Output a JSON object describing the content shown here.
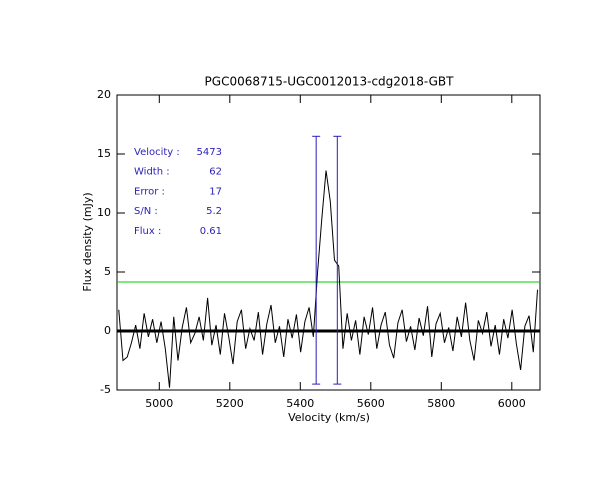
{
  "chart_data": {
    "type": "line",
    "title": "PGC0068715-UGC0012013-cdg2018-GBT",
    "x_label": "Velocity (km/s)",
    "y_label": "Flux density (mJy)",
    "xlim": [
      4880,
      6080
    ],
    "ylim": [
      -5,
      20
    ],
    "xticks": [
      5000,
      5200,
      5400,
      5600,
      5800,
      6000
    ],
    "yticks": [
      -5,
      0,
      5,
      10,
      15,
      20
    ],
    "x": [
      4885,
      4897,
      4909,
      4921,
      4933,
      4945,
      4957,
      4969,
      4981,
      4993,
      5005,
      5017,
      5029,
      5041,
      5053,
      5065,
      5077,
      5089,
      5101,
      5113,
      5125,
      5137,
      5149,
      5161,
      5173,
      5185,
      5197,
      5209,
      5221,
      5233,
      5245,
      5257,
      5269,
      5281,
      5293,
      5305,
      5317,
      5329,
      5341,
      5353,
      5365,
      5377,
      5389,
      5401,
      5413,
      5425,
      5437,
      5449,
      5461,
      5473,
      5485,
      5497,
      5509,
      5521,
      5533,
      5545,
      5557,
      5569,
      5581,
      5593,
      5605,
      5617,
      5629,
      5641,
      5653,
      5665,
      5677,
      5689,
      5701,
      5713,
      5725,
      5737,
      5749,
      5761,
      5773,
      5785,
      5797,
      5809,
      5821,
      5833,
      5845,
      5857,
      5869,
      5881,
      5893,
      5905,
      5917,
      5929,
      5941,
      5953,
      5965,
      5977,
      5989,
      6001,
      6013,
      6025,
      6037,
      6049,
      6061,
      6073
    ],
    "series": [
      {
        "color": "#000000",
        "values": [
          1.8,
          -2.5,
          -2.2,
          -1.0,
          0.5,
          -1.5,
          1.5,
          -0.5,
          1.0,
          -1.0,
          0.8,
          -1.5,
          -4.8,
          1.2,
          -2.5,
          0.3,
          2.0,
          -1.0,
          -0.2,
          1.2,
          -0.8,
          2.8,
          -1.2,
          0.5,
          -2.0,
          1.5,
          -0.5,
          -2.8,
          0.8,
          1.8,
          -1.5,
          0.2,
          -0.8,
          1.6,
          -2.0,
          0.6,
          2.2,
          -1.0,
          0.4,
          -2.2,
          1.0,
          -0.6,
          1.4,
          -1.8,
          0.8,
          2.0,
          -0.5,
          5.0,
          9.5,
          13.6,
          11.0,
          6.0,
          5.5,
          -1.5,
          1.5,
          -0.8,
          0.9,
          -2.0,
          1.2,
          -0.3,
          2.0,
          -1.5,
          0.5,
          1.6,
          -1.2,
          -2.3,
          0.7,
          1.8,
          -0.9,
          0.4,
          -1.6,
          1.1,
          -0.4,
          2.1,
          -2.2,
          0.6,
          1.5,
          -1.0,
          0.3,
          -1.7,
          1.2,
          -0.5,
          2.4,
          -0.8,
          -2.5,
          0.9,
          -0.2,
          1.6,
          -1.3,
          0.5,
          -2.0,
          1.0,
          -0.6,
          1.8,
          -1.1,
          -3.3,
          0.4,
          1.3,
          -1.8,
          3.5
        ]
      }
    ],
    "threshold": {
      "value": 4.15,
      "color": "#00cc00"
    },
    "markers": {
      "x": [
        5445,
        5505
      ],
      "ymin": -4.5,
      "ymax": 16.5,
      "color": "#2a1fb8"
    },
    "annotations": [
      {
        "label": "Velocity :",
        "value": 5473
      },
      {
        "label": "Width :",
        "value": 62
      },
      {
        "label": "Error :",
        "value": 17
      },
      {
        "label": "S/N :",
        "value": 5.2
      },
      {
        "label": "Flux :",
        "value": 0.61
      }
    ],
    "annotation_color": "#2a1fb8"
  }
}
